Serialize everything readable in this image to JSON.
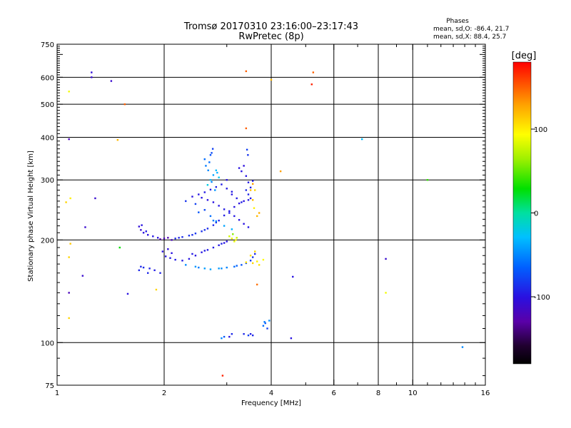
{
  "chart_data": {
    "type": "scatter",
    "title": "Tromsø 20170310 23:16:00–23:17:43",
    "subtitle": "RwPretec (8p)",
    "xlabel": "Frequency [MHz]",
    "ylabel": "Stationary phase Virtual Height [km]",
    "x_scale": "log",
    "y_scale": "log",
    "xlim": [
      1,
      16
    ],
    "ylim": [
      75,
      750
    ],
    "x_major_ticks": [
      {
        "v": 1,
        "label": "1"
      },
      {
        "v": 2,
        "label": "2"
      },
      {
        "v": 4,
        "label": "4"
      },
      {
        "v": 6,
        "label": "6"
      },
      {
        "v": 8,
        "label": "8"
      },
      {
        "v": 10,
        "label": "10"
      },
      {
        "v": 16,
        "label": "16"
      }
    ],
    "x_grid": [
      2,
      4,
      6,
      8,
      10
    ],
    "y_major_ticks": [
      {
        "v": 75,
        "label": "75"
      },
      {
        "v": 100,
        "label": "100"
      },
      {
        "v": 200,
        "label": "200"
      },
      {
        "v": 300,
        "label": "300"
      },
      {
        "v": 400,
        "label": "400"
      },
      {
        "v": 500,
        "label": "500"
      },
      {
        "v": 600,
        "label": "600"
      },
      {
        "v": 750,
        "label": "750"
      }
    ],
    "y_grid": [
      100,
      200,
      300,
      400,
      500,
      600
    ],
    "grid": true,
    "stats_header": "Phases",
    "stats_o": "mean, sd,O:  -86.4, 21.7",
    "stats_x": "mean, sd,X:  88.4, 25.7",
    "colorbar": {
      "label": "[deg]",
      "range": [
        -180,
        180
      ],
      "ticks": [
        {
          "v": 100,
          "label": "100"
        },
        {
          "v": 0,
          "label": "0"
        },
        {
          "v": -100,
          "label": "-100"
        }
      ]
    },
    "points": [
      [
        1.25,
        620,
        -105
      ],
      [
        1.25,
        600,
        -108
      ],
      [
        1.42,
        585,
        -110
      ],
      [
        1.08,
        545,
        90
      ],
      [
        1.55,
        500,
        150
      ],
      [
        1.08,
        395,
        -120
      ],
      [
        1.48,
        393,
        120
      ],
      [
        1.09,
        265,
        100
      ],
      [
        1.28,
        265,
        -110
      ],
      [
        1.06,
        258,
        110
      ],
      [
        1.2,
        218,
        -110
      ],
      [
        1.09,
        195,
        115
      ],
      [
        1.5,
        190,
        30
      ],
      [
        1.08,
        178,
        110
      ],
      [
        1.18,
        157,
        -110
      ],
      [
        1.08,
        140,
        -120
      ],
      [
        1.58,
        139,
        -100
      ],
      [
        1.08,
        118,
        110
      ],
      [
        3.4,
        625,
        150
      ],
      [
        4.0,
        590,
        120
      ],
      [
        5.25,
        620,
        150
      ],
      [
        5.2,
        572,
        170
      ],
      [
        3.4,
        425,
        150
      ],
      [
        4.25,
        318,
        130
      ],
      [
        7.2,
        395,
        -30
      ],
      [
        11.0,
        300,
        40
      ],
      [
        8.4,
        176,
        -110
      ],
      [
        8.4,
        140,
        90
      ],
      [
        13.8,
        97,
        -50
      ],
      [
        1.9,
        143,
        110
      ],
      [
        3.65,
        148,
        145
      ],
      [
        4.6,
        156,
        -100
      ],
      [
        2.92,
        80,
        170
      ],
      [
        1.7,
        219,
        -105
      ],
      [
        1.72,
        214,
        -108
      ],
      [
        1.75,
        210,
        -102
      ],
      [
        1.8,
        207,
        -100
      ],
      [
        1.86,
        205,
        -98
      ],
      [
        1.92,
        203,
        -100
      ],
      [
        2.0,
        202,
        -120
      ],
      [
        2.05,
        203,
        -125
      ],
      [
        1.95,
        201,
        -130
      ],
      [
        2.1,
        200,
        -120
      ],
      [
        1.78,
        212,
        -95
      ],
      [
        1.73,
        221,
        -100
      ],
      [
        1.7,
        163,
        -90
      ],
      [
        1.75,
        166,
        -88
      ],
      [
        1.82,
        165,
        -92
      ],
      [
        1.88,
        163,
        -95
      ],
      [
        1.8,
        160,
        -90
      ],
      [
        1.95,
        160,
        -92
      ],
      [
        1.72,
        167,
        -90
      ],
      [
        1.98,
        185,
        -100
      ],
      [
        2.02,
        179,
        -98
      ],
      [
        2.08,
        177,
        -96
      ],
      [
        2.15,
        175,
        -95
      ],
      [
        2.25,
        174,
        -97
      ],
      [
        2.35,
        176,
        -99
      ],
      [
        2.45,
        180,
        -100
      ],
      [
        2.55,
        184,
        -98
      ],
      [
        2.65,
        187,
        -96
      ],
      [
        2.75,
        190,
        -95
      ],
      [
        2.85,
        193,
        -97
      ],
      [
        2.95,
        196,
        -99
      ],
      [
        3.0,
        198,
        -100
      ],
      [
        2.05,
        188,
        -103
      ],
      [
        2.1,
        183,
        -101
      ],
      [
        2.4,
        182,
        -96
      ],
      [
        2.6,
        186,
        -95
      ],
      [
        2.9,
        195,
        -93
      ],
      [
        2.15,
        202,
        -90
      ],
      [
        2.25,
        204,
        -88
      ],
      [
        2.35,
        206,
        -86
      ],
      [
        2.45,
        209,
        -85
      ],
      [
        2.55,
        212,
        -87
      ],
      [
        2.65,
        216,
        -89
      ],
      [
        2.75,
        221,
        -91
      ],
      [
        2.85,
        228,
        -93
      ],
      [
        2.95,
        236,
        -95
      ],
      [
        3.05,
        243,
        -97
      ],
      [
        3.15,
        250,
        -99
      ],
      [
        3.25,
        256,
        -101
      ],
      [
        3.35,
        260,
        -100
      ],
      [
        3.45,
        262,
        -98
      ],
      [
        3.5,
        265,
        -96
      ],
      [
        2.2,
        203,
        -92
      ],
      [
        2.4,
        207,
        -88
      ],
      [
        2.6,
        214,
        -86
      ],
      [
        2.8,
        225,
        -90
      ],
      [
        2.3,
        169,
        -50
      ],
      [
        2.45,
        167,
        -45
      ],
      [
        2.6,
        165,
        -42
      ],
      [
        2.7,
        164,
        -40
      ],
      [
        2.85,
        165,
        -44
      ],
      [
        3.0,
        166,
        -52
      ],
      [
        3.15,
        167,
        -60
      ],
      [
        3.3,
        169,
        -70
      ],
      [
        3.4,
        171,
        -75
      ],
      [
        3.5,
        174,
        -80
      ],
      [
        3.55,
        178,
        -85
      ],
      [
        3.6,
        182,
        -90
      ],
      [
        2.5,
        166,
        -55
      ],
      [
        2.9,
        165,
        -48
      ],
      [
        3.2,
        168,
        -65
      ],
      [
        3.4,
        172,
        105
      ],
      [
        3.55,
        171,
        110
      ],
      [
        3.65,
        173,
        100
      ],
      [
        3.8,
        175,
        95
      ],
      [
        3.7,
        169,
        105
      ],
      [
        3.6,
        185,
        110
      ],
      [
        3.5,
        180,
        108
      ],
      [
        2.4,
        268,
        -100
      ],
      [
        2.5,
        272,
        -98
      ],
      [
        2.6,
        276,
        -96
      ],
      [
        2.7,
        281,
        -95
      ],
      [
        2.8,
        286,
        -93
      ],
      [
        2.9,
        291,
        -95
      ],
      [
        3.0,
        283,
        -97
      ],
      [
        3.1,
        277,
        -96
      ],
      [
        2.55,
        266,
        -99
      ],
      [
        2.65,
        262,
        -101
      ],
      [
        2.75,
        258,
        -100
      ],
      [
        2.85,
        252,
        -98
      ],
      [
        2.95,
        246,
        -96
      ],
      [
        3.05,
        240,
        -95
      ],
      [
        3.15,
        235,
        -97
      ],
      [
        3.25,
        229,
        -99
      ],
      [
        3.35,
        223,
        -100
      ],
      [
        3.45,
        218,
        -98
      ],
      [
        2.65,
        290,
        -20
      ],
      [
        2.7,
        300,
        -30
      ],
      [
        2.75,
        310,
        -40
      ],
      [
        2.8,
        320,
        -30
      ],
      [
        2.85,
        305,
        -25
      ],
      [
        2.78,
        280,
        -45
      ],
      [
        2.72,
        296,
        -50
      ],
      [
        2.82,
        315,
        -35
      ],
      [
        2.6,
        345,
        -60
      ],
      [
        2.62,
        330,
        -55
      ],
      [
        2.7,
        355,
        -70
      ],
      [
        2.74,
        370,
        -80
      ],
      [
        2.66,
        320,
        -50
      ],
      [
        2.68,
        338,
        -60
      ],
      [
        2.72,
        360,
        -75
      ],
      [
        3.25,
        325,
        -100
      ],
      [
        3.3,
        318,
        -100
      ],
      [
        3.35,
        330,
        -102
      ],
      [
        3.4,
        308,
        -98
      ],
      [
        3.45,
        295,
        -96
      ],
      [
        3.5,
        285,
        -95
      ],
      [
        3.4,
        280,
        -90
      ],
      [
        3.45,
        272,
        -92
      ],
      [
        3.3,
        258,
        -94
      ],
      [
        3.2,
        265,
        -96
      ],
      [
        3.1,
        272,
        -98
      ],
      [
        3.0,
        300,
        -100
      ],
      [
        3.55,
        298,
        -95
      ],
      [
        3.42,
        368,
        -80
      ],
      [
        3.44,
        355,
        -85
      ],
      [
        3.5,
        280,
        120
      ],
      [
        3.55,
        292,
        130
      ],
      [
        3.6,
        280,
        110
      ],
      [
        3.55,
        262,
        120
      ],
      [
        3.65,
        235,
        120
      ],
      [
        3.7,
        240,
        125
      ],
      [
        3.58,
        248,
        100
      ],
      [
        2.3,
        260,
        -85
      ],
      [
        2.45,
        255,
        -80
      ],
      [
        2.6,
        245,
        -75
      ],
      [
        2.7,
        235,
        -60
      ],
      [
        2.8,
        227,
        -50
      ],
      [
        2.95,
        220,
        -40
      ],
      [
        3.1,
        215,
        -35
      ],
      [
        2.5,
        241,
        -70
      ],
      [
        2.75,
        228,
        -55
      ],
      [
        3.05,
        205,
        80
      ],
      [
        3.1,
        202,
        90
      ],
      [
        3.15,
        198,
        85
      ],
      [
        3.2,
        203,
        75
      ],
      [
        3.12,
        208,
        60
      ],
      [
        3.18,
        200,
        100
      ],
      [
        3.8,
        112,
        -60
      ],
      [
        3.85,
        114,
        -70
      ],
      [
        3.9,
        110,
        -80
      ],
      [
        3.83,
        115,
        -55
      ],
      [
        3.95,
        116,
        -50
      ],
      [
        2.9,
        103,
        -50
      ],
      [
        3.1,
        106,
        -90
      ],
      [
        3.35,
        106,
        -90
      ],
      [
        3.45,
        105,
        -80
      ],
      [
        3.55,
        105,
        -90
      ],
      [
        3.05,
        104,
        -100
      ],
      [
        3.5,
        106,
        -95
      ],
      [
        2.95,
        104,
        -70
      ],
      [
        4.55,
        103,
        -100
      ]
    ]
  }
}
